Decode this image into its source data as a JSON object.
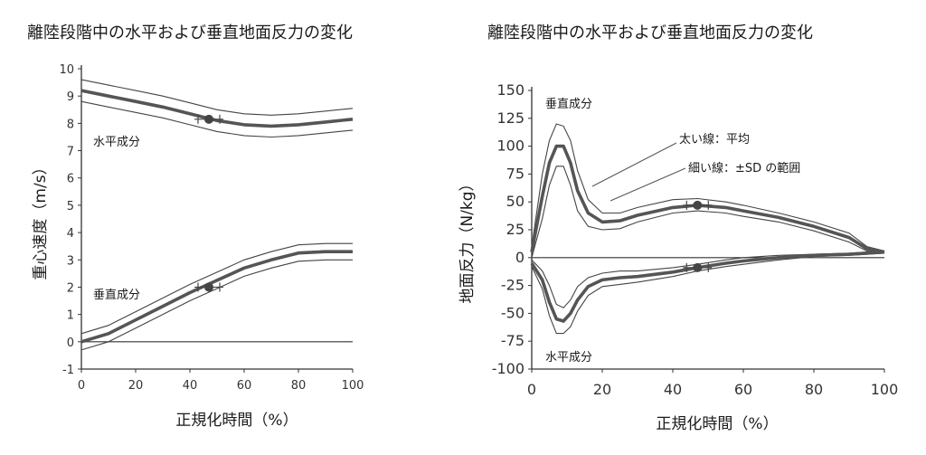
{
  "chart_data": [
    {
      "type": "line",
      "title": "離陸段階中の水平および垂直地面反力の変化",
      "xlabel": "正規化時間（%）",
      "ylabel": "重心速度（m/s）",
      "xlim": [
        0,
        100
      ],
      "ylim": [
        -1,
        10
      ],
      "xticks": [
        "0",
        "20",
        "40",
        "60",
        "80",
        "100"
      ],
      "yticks": [
        "-1",
        "0",
        "1",
        "2",
        "3",
        "4",
        "5",
        "6",
        "7",
        "8",
        "9",
        "10"
      ],
      "grid": false,
      "series": [
        {
          "name": "水平成分",
          "x": [
            0,
            10,
            20,
            30,
            40,
            50,
            60,
            70,
            80,
            90,
            100
          ],
          "values": [
            9.2,
            9.0,
            8.8,
            8.6,
            8.35,
            8.1,
            7.95,
            7.9,
            7.95,
            8.05,
            8.15
          ],
          "band": 0.4,
          "marker": {
            "x": 47,
            "y": 8.15
          }
        },
        {
          "name": "垂直成分",
          "x": [
            0,
            10,
            20,
            30,
            40,
            50,
            60,
            70,
            80,
            90,
            100
          ],
          "values": [
            0.0,
            0.3,
            0.8,
            1.3,
            1.8,
            2.25,
            2.7,
            3.0,
            3.25,
            3.3,
            3.3
          ],
          "band": 0.3,
          "marker": {
            "x": 47,
            "y": 2.0
          }
        }
      ]
    },
    {
      "type": "line",
      "title": "離陸段階中の水平および垂直地面反力の変化",
      "xlabel": "正規化時間（%）",
      "ylabel": "地面反力（N/kg）",
      "xlim": [
        0,
        100
      ],
      "ylim": [
        -100,
        150
      ],
      "xticks": [
        "0",
        "20",
        "40",
        "60",
        "80",
        "100"
      ],
      "yticks": [
        "-100",
        "-75",
        "-50",
        "-25",
        "0",
        "25",
        "50",
        "75",
        "100",
        "125",
        "150"
      ],
      "grid": false,
      "series": [
        {
          "name": "垂直成分",
          "x": [
            0,
            3,
            5,
            7,
            9,
            11,
            13,
            16,
            20,
            25,
            30,
            40,
            47,
            55,
            60,
            70,
            80,
            90,
            95,
            100
          ],
          "values": [
            5,
            55,
            85,
            100,
            100,
            85,
            60,
            40,
            32,
            33,
            38,
            45,
            47,
            45,
            42,
            36,
            28,
            18,
            8,
            5
          ],
          "band_upper": [
            10,
            75,
            105,
            120,
            118,
            105,
            78,
            52,
            40,
            40,
            45,
            52,
            53,
            50,
            47,
            40,
            32,
            22,
            10,
            6
          ],
          "band_lower": [
            0,
            35,
            65,
            82,
            82,
            65,
            42,
            28,
            25,
            26,
            32,
            40,
            42,
            40,
            37,
            32,
            24,
            14,
            6,
            4
          ],
          "marker": {
            "x": 47,
            "y": 47
          }
        },
        {
          "name": "水平成分",
          "x": [
            0,
            3,
            5,
            7,
            9,
            11,
            13,
            16,
            20,
            25,
            30,
            40,
            47,
            55,
            60,
            70,
            80,
            90,
            95,
            100
          ],
          "values": [
            -5,
            -20,
            -40,
            -55,
            -57,
            -50,
            -38,
            -26,
            -20,
            -18,
            -17,
            -13,
            -9,
            -5,
            -3,
            0,
            2,
            3,
            4,
            5
          ],
          "band_upper": [
            -2,
            -12,
            -25,
            -42,
            -45,
            -38,
            -26,
            -18,
            -14,
            -12,
            -12,
            -9,
            -6,
            -2,
            0,
            2,
            3,
            4,
            5,
            6
          ],
          "band_lower": [
            -8,
            -28,
            -52,
            -68,
            -68,
            -62,
            -48,
            -34,
            -26,
            -24,
            -22,
            -17,
            -12,
            -8,
            -6,
            -2,
            1,
            2,
            3,
            4
          ],
          "marker": {
            "x": 47,
            "y": -9
          }
        }
      ],
      "annotations": [
        "太い線：平均",
        "細い線：±SD の範囲"
      ]
    }
  ],
  "left": {
    "title": "離陸段階中の水平および垂直地面反力の変化",
    "ylabel": "重心速度（m/s）",
    "xlabel": "正規化時間（%）",
    "label_horizontal": "水平成分",
    "label_vertical": "垂直成分"
  },
  "right": {
    "title": "離陸段階中の水平および垂直地面反力の変化",
    "ylabel": "地面反力（N/kg）",
    "xlabel": "正規化時間（%）",
    "label_vertical": "垂直成分",
    "label_horizontal": "水平成分",
    "legend_thick": "太い線：平均",
    "legend_thin": "細い線：±SD の範囲"
  },
  "colors": {
    "line": "#555555",
    "band": "#444444",
    "marker": "#444444",
    "axis": "#333333"
  }
}
